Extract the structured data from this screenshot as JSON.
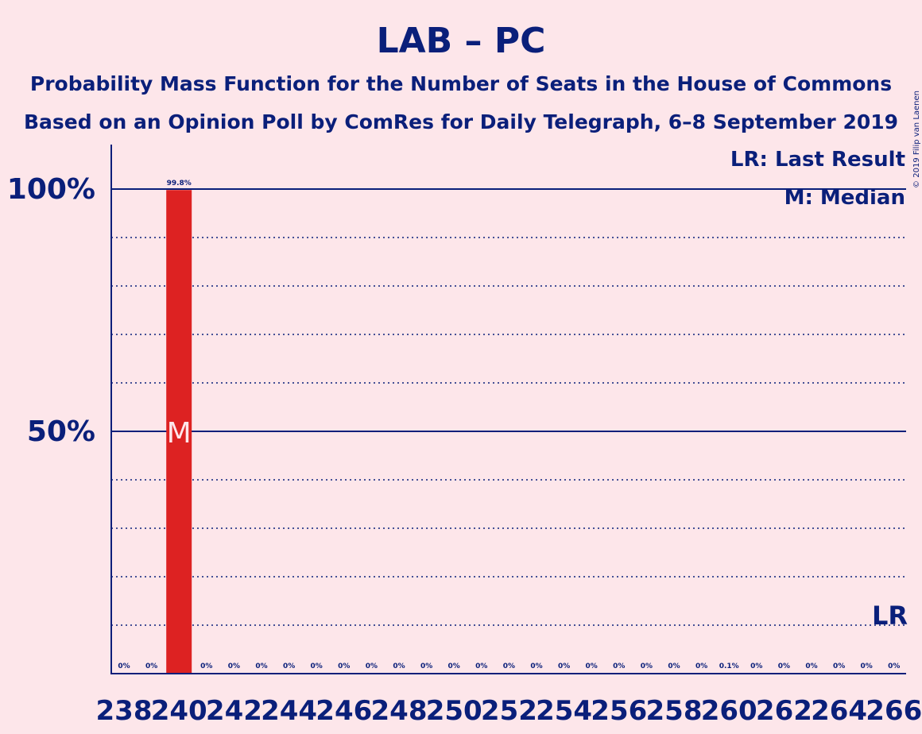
{
  "chart_data": {
    "type": "bar",
    "title": "LAB – PC",
    "subtitle1": "Probability Mass Function for the Number of Seats in the House of Commons",
    "subtitle2": "Based on an Opinion Poll by ComRes for Daily Telegraph, 6–8 September 2019",
    "copyright": "© 2019 Filip van Laenen",
    "legend": [
      "LR: Last Result",
      "M: Median"
    ],
    "legend_position": "top-right",
    "ylim": [
      0,
      100
    ],
    "yticks": [
      {
        "value": 50,
        "label": "50%"
      },
      {
        "value": 100,
        "label": "100%"
      }
    ],
    "x": [
      238,
      239,
      240,
      241,
      242,
      243,
      244,
      245,
      246,
      247,
      248,
      249,
      250,
      251,
      252,
      253,
      254,
      255,
      256,
      257,
      258,
      259,
      260,
      261,
      262,
      263,
      264,
      265,
      266
    ],
    "x_tick_labels": [
      "238",
      "240",
      "242",
      "244",
      "246",
      "248",
      "250",
      "252",
      "254",
      "256",
      "258",
      "260",
      "262",
      "264",
      "266"
    ],
    "values": [
      0,
      0,
      99.8,
      0,
      0,
      0,
      0,
      0,
      0,
      0,
      0,
      0,
      0,
      0,
      0,
      0,
      0,
      0,
      0,
      0,
      0,
      0,
      0.1,
      0,
      0,
      0,
      0,
      0,
      0
    ],
    "value_labels": [
      "0%",
      "0%",
      "99.8%",
      "0%",
      "0%",
      "0%",
      "0%",
      "0%",
      "0%",
      "0%",
      "0%",
      "0%",
      "0%",
      "0%",
      "0%",
      "0%",
      "0%",
      "0%",
      "0%",
      "0%",
      "0%",
      "0%",
      "0.1%",
      "0%",
      "0%",
      "0%",
      "0%",
      "0%",
      "0%"
    ],
    "median": {
      "seat": 240,
      "label": "M"
    },
    "last_result": {
      "label": "LR"
    },
    "colors": {
      "bar": "#dd2222",
      "text": "#0a1f7a",
      "background": "#fde6ea",
      "median_text": "#fde6ea"
    }
  }
}
